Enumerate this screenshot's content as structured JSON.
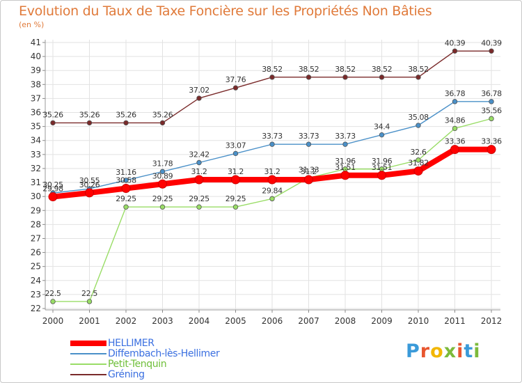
{
  "title": "Evolution du Taux de Taxe Foncière sur les Propriétés Non Bâties",
  "unit_label": "(en %)",
  "logo": {
    "text": "Proxiti",
    "colors": [
      "#3a9ad9",
      "#e8562f",
      "#f2b705",
      "#7cba3b",
      "#e8562f",
      "#3a9ad9",
      "#7cba3b"
    ]
  },
  "chart_data": {
    "type": "line",
    "x": [
      "2000",
      "2001",
      "2002",
      "2003",
      "2004",
      "2005",
      "2006",
      "2007",
      "2008",
      "2009",
      "2010",
      "2011",
      "2012"
    ],
    "ylim": [
      22,
      41
    ],
    "yticks": [
      "22",
      "23",
      "24",
      "25",
      "26",
      "27",
      "28",
      "29",
      "30",
      "31",
      "32",
      "33",
      "34",
      "35",
      "36",
      "37",
      "38",
      "39",
      "40",
      "41"
    ],
    "grid": true,
    "series": [
      {
        "name": "HELLIMER",
        "color": "#ff0000",
        "width": 8,
        "values": [
          29.98,
          30.26,
          30.58,
          30.89,
          31.2,
          31.2,
          31.2,
          31.2,
          31.51,
          31.51,
          31.82,
          33.36,
          33.36
        ],
        "labels": [
          "29.98",
          "30.26",
          "30.58",
          "30.89",
          "31.2",
          "31.2",
          "31.2",
          "31.2",
          "31.51",
          "31.51",
          "31.82",
          "33.36",
          "33.36"
        ]
      },
      {
        "name": "Diffembach-lès-Hellimer",
        "color": "#4a90c8",
        "width": 1.4,
        "values": [
          30.25,
          30.55,
          31.16,
          31.78,
          32.42,
          33.07,
          33.73,
          33.73,
          33.73,
          34.4,
          35.08,
          36.78,
          36.78
        ],
        "labels": [
          "30.25",
          "30.55",
          "31.16",
          "31.78",
          "32.42",
          "33.07",
          "33.73",
          "33.73",
          "33.73",
          "34.4",
          "35.08",
          "36.78",
          "36.78"
        ]
      },
      {
        "name": "Petit-Tenquin",
        "color": "#99dd66",
        "width": 1.4,
        "values": [
          22.5,
          22.5,
          29.25,
          29.25,
          29.25,
          29.25,
          29.84,
          31.33,
          31.96,
          31.96,
          32.6,
          34.86,
          35.56
        ],
        "labels": [
          "22.5",
          "22.5",
          "29.25",
          "29.25",
          "29.25",
          "29.25",
          "29.84",
          "31.33",
          "31.96",
          "31.96",
          "32.6",
          "34.86",
          "35.56"
        ]
      },
      {
        "name": "Gréning",
        "color": "#7a2a2a",
        "width": 1.4,
        "values": [
          35.26,
          35.26,
          35.26,
          35.26,
          37.02,
          37.76,
          38.52,
          38.52,
          38.52,
          38.52,
          38.52,
          40.39,
          40.39
        ],
        "labels": [
          "35.26",
          "35.26",
          "35.26",
          "35.26",
          "37.02",
          "37.76",
          "38.52",
          "38.52",
          "38.52",
          "38.52",
          "38.52",
          "40.39",
          "40.39"
        ]
      }
    ]
  }
}
